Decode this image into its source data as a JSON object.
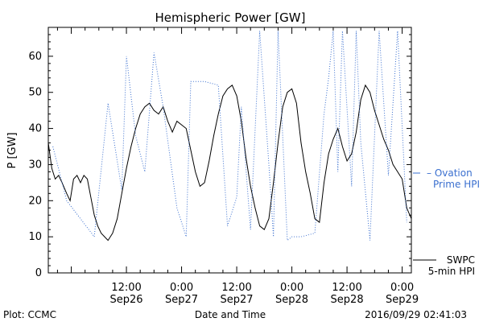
{
  "chart_data": {
    "type": "line",
    "title": "Hemispheric Power [GW]",
    "ylabel": "P [GW]",
    "xlabel": "Date and Time",
    "ylim": [
      0,
      68
    ],
    "xlim": [
      "2016-09-25 19:00",
      "2016-09-29 02:00"
    ],
    "yticks": [
      0,
      10,
      20,
      30,
      40,
      50,
      60
    ],
    "xticks": [
      {
        "time": "2016-09-26 12:00",
        "label1": "12:00",
        "label2": "Sep26"
      },
      {
        "time": "2016-09-27 00:00",
        "label1": "0:00",
        "label2": "Sep27"
      },
      {
        "time": "2016-09-27 12:00",
        "label1": "12:00",
        "label2": "Sep27"
      },
      {
        "time": "2016-09-28 00:00",
        "label1": "0:00",
        "label2": "Sep28"
      },
      {
        "time": "2016-09-28 12:00",
        "label1": "12:00",
        "label2": "Sep28"
      },
      {
        "time": "2016-09-29 00:00",
        "label1": "0:00",
        "label2": "Sep29"
      }
    ],
    "series": [
      {
        "name": "SWPC 5-min HPI",
        "color": "#000000",
        "style": "solid",
        "points": [
          [
            "2016-09-25 19:00",
            36
          ],
          [
            "2016-09-25 19:45",
            29
          ],
          [
            "2016-09-25 20:30",
            26
          ],
          [
            "2016-09-25 21:15",
            27
          ],
          [
            "2016-09-25 22:00",
            25
          ],
          [
            "2016-09-25 23:00",
            22
          ],
          [
            "2016-09-25 23:45",
            20
          ],
          [
            "2016-09-26 00:30",
            26
          ],
          [
            "2016-09-26 01:15",
            27
          ],
          [
            "2016-09-26 02:00",
            25
          ],
          [
            "2016-09-26 02:45",
            27
          ],
          [
            "2016-09-26 03:30",
            26
          ],
          [
            "2016-09-26 04:15",
            21
          ],
          [
            "2016-09-26 05:00",
            16
          ],
          [
            "2016-09-26 05:45",
            13
          ],
          [
            "2016-09-26 06:30",
            11
          ],
          [
            "2016-09-26 07:15",
            10
          ],
          [
            "2016-09-26 08:00",
            9
          ],
          [
            "2016-09-26 09:00",
            11
          ],
          [
            "2016-09-26 10:00",
            15
          ],
          [
            "2016-09-26 11:00",
            22
          ],
          [
            "2016-09-26 12:00",
            29
          ],
          [
            "2016-09-26 13:00",
            35
          ],
          [
            "2016-09-26 14:00",
            40
          ],
          [
            "2016-09-26 15:00",
            44
          ],
          [
            "2016-09-26 16:00",
            46
          ],
          [
            "2016-09-26 17:00",
            47
          ],
          [
            "2016-09-26 18:00",
            45
          ],
          [
            "2016-09-26 19:00",
            44
          ],
          [
            "2016-09-26 20:00",
            46
          ],
          [
            "2016-09-26 21:00",
            42
          ],
          [
            "2016-09-26 22:00",
            39
          ],
          [
            "2016-09-26 23:00",
            42
          ],
          [
            "2016-09-27 00:00",
            41
          ],
          [
            "2016-09-27 01:00",
            40
          ],
          [
            "2016-09-27 02:00",
            34
          ],
          [
            "2016-09-27 03:00",
            28
          ],
          [
            "2016-09-27 04:00",
            24
          ],
          [
            "2016-09-27 05:00",
            25
          ],
          [
            "2016-09-27 06:00",
            31
          ],
          [
            "2016-09-27 07:00",
            38
          ],
          [
            "2016-09-27 08:00",
            44
          ],
          [
            "2016-09-27 09:00",
            49
          ],
          [
            "2016-09-27 10:00",
            51
          ],
          [
            "2016-09-27 11:00",
            52
          ],
          [
            "2016-09-27 12:00",
            49
          ],
          [
            "2016-09-27 13:00",
            42
          ],
          [
            "2016-09-27 14:00",
            32
          ],
          [
            "2016-09-27 15:00",
            24
          ],
          [
            "2016-09-27 16:00",
            18
          ],
          [
            "2016-09-27 17:00",
            13
          ],
          [
            "2016-09-27 18:00",
            12
          ],
          [
            "2016-09-27 19:00",
            15
          ],
          [
            "2016-09-27 20:00",
            25
          ],
          [
            "2016-09-27 21:00",
            36
          ],
          [
            "2016-09-27 22:00",
            46
          ],
          [
            "2016-09-27 23:00",
            50
          ],
          [
            "2016-09-28 00:00",
            51
          ],
          [
            "2016-09-28 01:00",
            47
          ],
          [
            "2016-09-28 02:00",
            36
          ],
          [
            "2016-09-28 03:00",
            28
          ],
          [
            "2016-09-28 04:00",
            22
          ],
          [
            "2016-09-28 05:00",
            15
          ],
          [
            "2016-09-28 06:00",
            14
          ],
          [
            "2016-09-28 07:00",
            25
          ],
          [
            "2016-09-28 08:00",
            33
          ],
          [
            "2016-09-28 09:00",
            37
          ],
          [
            "2016-09-28 10:00",
            40
          ],
          [
            "2016-09-28 11:00",
            35
          ],
          [
            "2016-09-28 12:00",
            31
          ],
          [
            "2016-09-28 13:00",
            33
          ],
          [
            "2016-09-28 14:00",
            39
          ],
          [
            "2016-09-28 15:00",
            48
          ],
          [
            "2016-09-28 16:00",
            52
          ],
          [
            "2016-09-28 17:00",
            50
          ],
          [
            "2016-09-28 18:00",
            45
          ],
          [
            "2016-09-28 19:00",
            41
          ],
          [
            "2016-09-28 20:00",
            37
          ],
          [
            "2016-09-28 21:00",
            34
          ],
          [
            "2016-09-28 22:00",
            30
          ],
          [
            "2016-09-28 23:00",
            28
          ],
          [
            "2016-09-29 00:00",
            26
          ],
          [
            "2016-09-29 01:00",
            18
          ],
          [
            "2016-09-29 02:00",
            15
          ]
        ]
      },
      {
        "name": "Ovation Prime HPI",
        "color": "#3a6fcf",
        "style": "dotted",
        "points": [
          [
            "2016-09-25 20:00",
            35
          ],
          [
            "2016-09-25 23:00",
            20
          ],
          [
            "2016-09-26 02:00",
            15
          ],
          [
            "2016-09-26 05:00",
            10
          ],
          [
            "2016-09-26 08:00",
            47
          ],
          [
            "2016-09-26 11:00",
            23
          ],
          [
            "2016-09-26 12:00",
            60
          ],
          [
            "2016-09-26 14:00",
            38
          ],
          [
            "2016-09-26 16:00",
            28
          ],
          [
            "2016-09-26 18:00",
            61
          ],
          [
            "2016-09-26 20:00",
            46
          ],
          [
            "2016-09-26 23:00",
            18
          ],
          [
            "2016-09-27 01:00",
            10
          ],
          [
            "2016-09-27 02:00",
            53
          ],
          [
            "2016-09-27 05:00",
            53
          ],
          [
            "2016-09-27 08:00",
            52
          ],
          [
            "2016-09-27 10:00",
            13
          ],
          [
            "2016-09-27 12:00",
            21
          ],
          [
            "2016-09-27 13:00",
            46
          ],
          [
            "2016-09-27 15:00",
            12
          ],
          [
            "2016-09-27 17:00",
            67
          ],
          [
            "2016-09-27 19:00",
            30
          ],
          [
            "2016-09-27 20:00",
            10
          ],
          [
            "2016-09-27 21:00",
            67
          ],
          [
            "2016-09-27 23:00",
            9
          ],
          [
            "2016-09-28 00:00",
            10
          ],
          [
            "2016-09-28 02:00",
            10
          ],
          [
            "2016-09-28 05:00",
            11
          ],
          [
            "2016-09-28 07:00",
            44
          ],
          [
            "2016-09-28 08:00",
            54
          ],
          [
            "2016-09-28 09:00",
            67
          ],
          [
            "2016-09-28 10:00",
            28
          ],
          [
            "2016-09-28 11:00",
            67
          ],
          [
            "2016-09-28 13:00",
            24
          ],
          [
            "2016-09-28 14:00",
            67
          ],
          [
            "2016-09-28 15:00",
            36
          ],
          [
            "2016-09-28 17:00",
            9
          ],
          [
            "2016-09-28 19:00",
            67
          ],
          [
            "2016-09-28 21:00",
            27
          ],
          [
            "2016-09-28 23:00",
            67
          ],
          [
            "2016-09-29 01:00",
            14
          ]
        ]
      }
    ],
    "legend": {
      "position": "right",
      "entries": [
        {
          "series": "Ovation Prime HPI",
          "line1": "Ovation",
          "line2": "Prime HPI",
          "color": "#3a6fcf"
        },
        {
          "series": "SWPC 5-min HPI",
          "line1": "SWPC",
          "line2": "5-min HPI",
          "color": "#000000"
        }
      ]
    },
    "grid": false
  },
  "footer": {
    "plot_label": "Plot: CCMC",
    "axis_label": "Date and Time",
    "timestamp": "2016/09/29 02:41:03"
  }
}
